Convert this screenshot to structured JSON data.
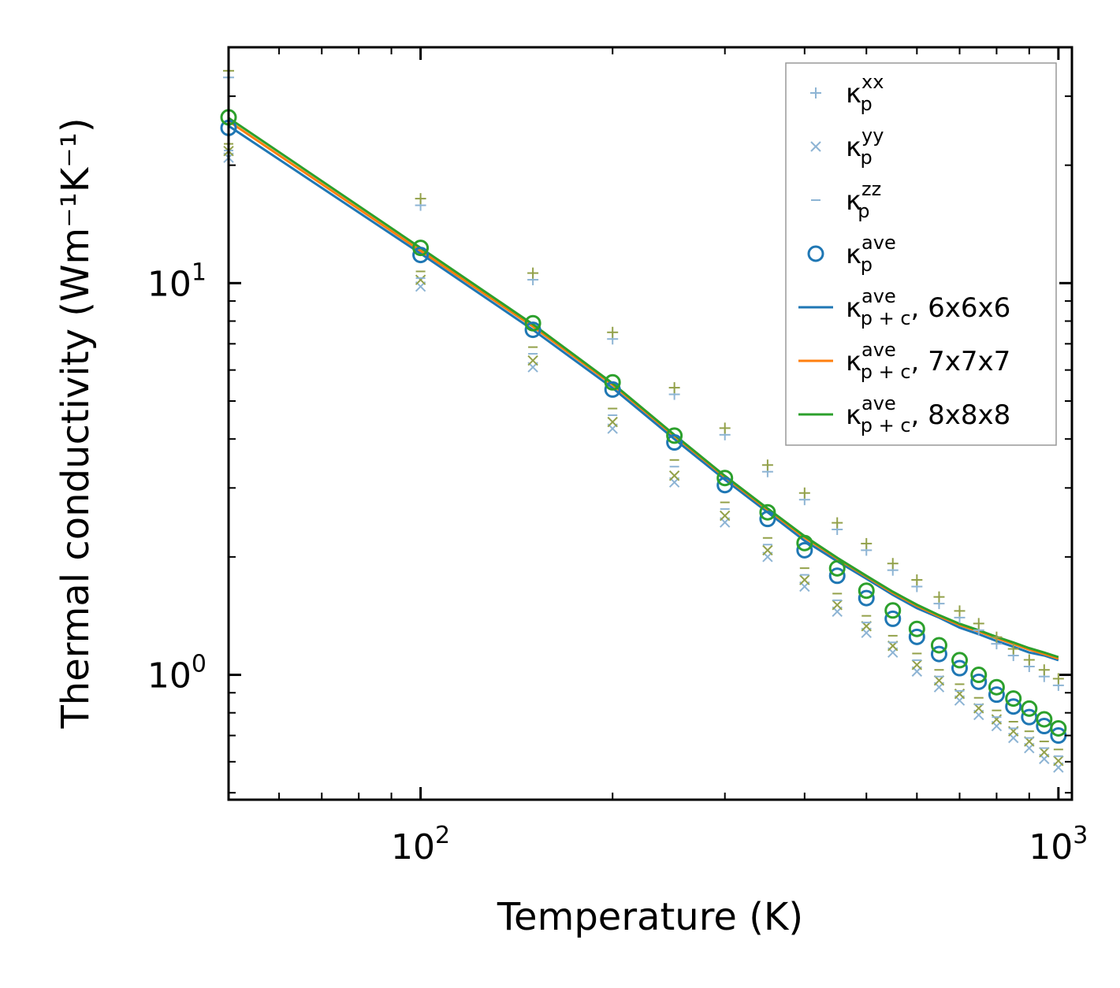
{
  "chart_data": {
    "type": "scatter",
    "xscale": "log",
    "yscale": "log",
    "xlim": [
      50,
      1050
    ],
    "ylim": [
      0.48,
      40
    ],
    "xlabel": "Temperature (K)",
    "ylabel": "Thermal conductivity (Wm⁻¹K⁻¹)",
    "x_ticks": [
      {
        "value": 100,
        "base": "10",
        "exp": "2"
      },
      {
        "value": 1000,
        "base": "10",
        "exp": "3"
      }
    ],
    "y_ticks": [
      {
        "value": 1,
        "base": "10",
        "exp": "0"
      },
      {
        "value": 10,
        "base": "10",
        "exp": "1"
      }
    ],
    "legend_position": "upper right",
    "colors": {
      "c6": "#1f77b4",
      "c7": "#ff7f0e",
      "c8": "#2ca02c",
      "light": "#8db4d4",
      "olive": "#93a14a"
    },
    "temperatures": [
      50,
      100,
      150,
      200,
      250,
      300,
      350,
      400,
      450,
      500,
      550,
      600,
      650,
      700,
      750,
      800,
      850,
      900,
      950,
      1000
    ],
    "series": [
      {
        "name": "κ_p^xx",
        "label_main": "κ",
        "sub": "p",
        "sup": "xx",
        "marker": "plus",
        "color": "#8db4d4",
        "values": [
          33.5,
          15.8,
          10.2,
          7.2,
          5.2,
          4.1,
          3.3,
          2.8,
          2.35,
          2.08,
          1.85,
          1.68,
          1.52,
          1.4,
          1.3,
          1.2,
          1.12,
          1.05,
          0.99,
          0.94
        ]
      },
      {
        "name": "κ_p^yy",
        "label_main": "κ",
        "sub": "p",
        "sup": "yy",
        "marker": "x",
        "color": "#8db4d4",
        "values": [
          20.9,
          9.8,
          6.1,
          4.25,
          3.1,
          2.45,
          2.0,
          1.68,
          1.45,
          1.28,
          1.14,
          1.02,
          0.93,
          0.86,
          0.79,
          0.74,
          0.69,
          0.65,
          0.61,
          0.58
        ]
      },
      {
        "name": "κ_p^zz",
        "label_main": "κ",
        "sub": "p",
        "sup": "zz",
        "marker": "dash",
        "color": "#8db4d4",
        "values": [
          21.8,
          10.3,
          6.6,
          4.6,
          3.4,
          2.65,
          2.15,
          1.8,
          1.55,
          1.36,
          1.21,
          1.09,
          0.99,
          0.91,
          0.84,
          0.78,
          0.73,
          0.69,
          0.65,
          0.62
        ]
      },
      {
        "name": "κ_p^ave (6x6x6)",
        "label_main": "κ",
        "sub": "p",
        "sup": "ave",
        "marker": "circle",
        "color": "#1f77b4",
        "values": [
          24.9,
          11.8,
          7.6,
          5.35,
          3.92,
          3.05,
          2.5,
          2.08,
          1.79,
          1.57,
          1.39,
          1.25,
          1.13,
          1.04,
          0.96,
          0.89,
          0.83,
          0.78,
          0.74,
          0.7
        ]
      },
      {
        "name": "κ_p^ave (8x8x8)",
        "marker": "circle",
        "color": "#2ca02c",
        "legend": false,
        "values": [
          26.5,
          12.3,
          7.9,
          5.58,
          4.08,
          3.18,
          2.6,
          2.17,
          1.87,
          1.64,
          1.46,
          1.31,
          1.19,
          1.09,
          1.0,
          0.93,
          0.87,
          0.82,
          0.77,
          0.73
        ]
      },
      {
        "name": "κ_p+c^ave, 6x6x6",
        "label_main": "κ",
        "sub": "p + c",
        "sup": "ave",
        "suffix": ", 6x6x6",
        "marker": "line",
        "color": "#1f77b4",
        "values": [
          25.2,
          11.9,
          7.6,
          5.4,
          4.0,
          3.15,
          2.6,
          2.2,
          1.95,
          1.76,
          1.6,
          1.48,
          1.4,
          1.32,
          1.27,
          1.22,
          1.18,
          1.14,
          1.12,
          1.09
        ]
      },
      {
        "name": "κ_p+c^ave, 7x7x7",
        "label_main": "κ",
        "sub": "p + c",
        "sup": "ave",
        "suffix": ", 7x7x7",
        "marker": "line",
        "color": "#ff7f0e",
        "values": [
          25.9,
          12.1,
          7.75,
          5.5,
          4.07,
          3.2,
          2.64,
          2.24,
          1.98,
          1.78,
          1.62,
          1.5,
          1.41,
          1.34,
          1.29,
          1.24,
          1.2,
          1.16,
          1.13,
          1.1
        ]
      },
      {
        "name": "κ_p+c^ave, 8x8x8",
        "label_main": "κ",
        "sub": "p + c",
        "sup": "ave",
        "suffix": ", 8x8x8",
        "marker": "line",
        "color": "#2ca02c",
        "values": [
          26.4,
          12.3,
          7.85,
          5.55,
          4.1,
          3.22,
          2.66,
          2.26,
          1.99,
          1.79,
          1.63,
          1.51,
          1.42,
          1.35,
          1.3,
          1.25,
          1.21,
          1.17,
          1.14,
          1.11
        ]
      }
    ]
  }
}
